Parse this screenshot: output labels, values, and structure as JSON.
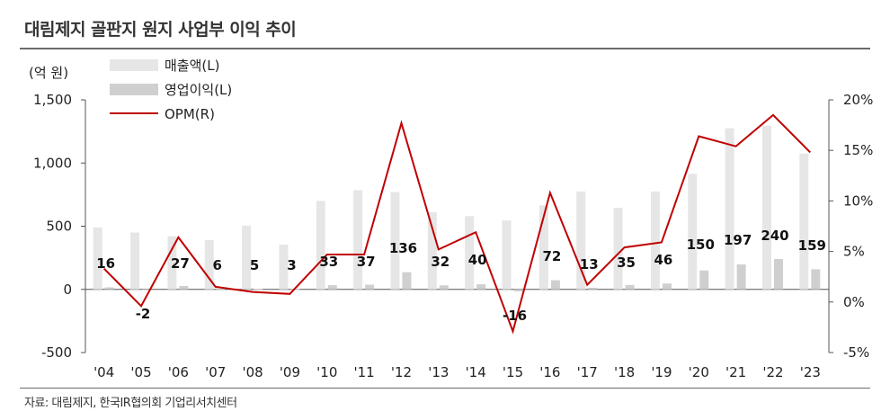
{
  "title": "대림제지 골판지 원지 사업부 이익 추이",
  "source": "자료: 대림제지, 한국IR협의회 기업리서치센터",
  "colors": {
    "sales": "#e6e6e6",
    "op_income": "#cfcfcf",
    "opm": "#c00000",
    "axis": "#555555"
  },
  "chart_data": {
    "type": "bar",
    "categories": [
      "'04",
      "'05",
      "'06",
      "'07",
      "'08",
      "'09",
      "'10",
      "'11",
      "'12",
      "'13",
      "'14",
      "'15",
      "'16",
      "'17",
      "'18",
      "'19",
      "'20",
      "'21",
      "'22",
      "'23"
    ],
    "series": [
      {
        "name": "매출액(L)",
        "type": "bar",
        "axis": "left",
        "values": [
          490,
          450,
          420,
          390,
          505,
          355,
          700,
          785,
          770,
          610,
          580,
          545,
          665,
          775,
          645,
          775,
          915,
          1275,
          1295,
          1075
        ]
      },
      {
        "name": "영업이익(L)",
        "type": "bar",
        "axis": "left",
        "values": [
          16,
          -2,
          27,
          6,
          5,
          3,
          33,
          37,
          136,
          32,
          40,
          -16,
          72,
          13,
          35,
          46,
          150,
          197,
          240,
          159
        ]
      },
      {
        "name": "OPM(R)",
        "type": "line",
        "axis": "right",
        "values": [
          3.3,
          -0.4,
          6.4,
          1.5,
          1.0,
          0.8,
          4.7,
          4.7,
          17.7,
          5.2,
          6.9,
          -2.9,
          10.8,
          1.7,
          5.4,
          5.9,
          16.4,
          15.4,
          18.5,
          14.8
        ]
      }
    ],
    "data_labels": [
      "16",
      "-2",
      "27",
      "6",
      "5",
      "3",
      "33",
      "37",
      "136",
      "32",
      "40",
      "-16",
      "72",
      "13",
      "35",
      "46",
      "150",
      "197",
      "240",
      "159"
    ],
    "ylabel": "(억 원)",
    "ylim": [
      -500,
      1500
    ],
    "yticks": [
      "-500",
      "0",
      "500",
      "1,000",
      "1,500"
    ],
    "y2lim": [
      -5,
      20
    ],
    "y2ticks": [
      "-5%",
      "0%",
      "5%",
      "10%",
      "15%",
      "20%"
    ],
    "grid": false,
    "legend_position": "top-left"
  }
}
